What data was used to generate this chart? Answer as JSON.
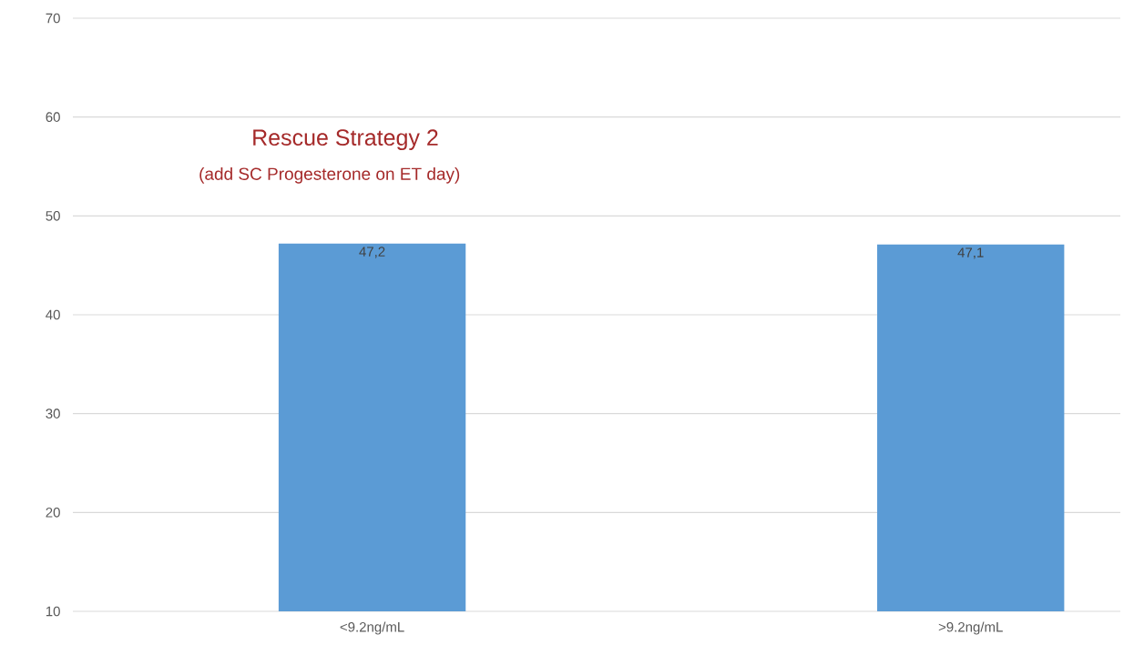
{
  "chart_data": {
    "type": "bar",
    "title": "Rescue Strategy 2",
    "subtitle": "(add SC Progesterone on ET day)",
    "categories": [
      "<9.2ng/mL",
      ">9.2ng/mL"
    ],
    "values": [
      47.2,
      47.1
    ],
    "value_labels": [
      "47,2",
      "47,1"
    ],
    "color": "#5b9bd5",
    "ylim": [
      10,
      70
    ],
    "yticks": [
      10,
      20,
      30,
      40,
      50,
      60,
      70
    ],
    "grid": "y"
  }
}
